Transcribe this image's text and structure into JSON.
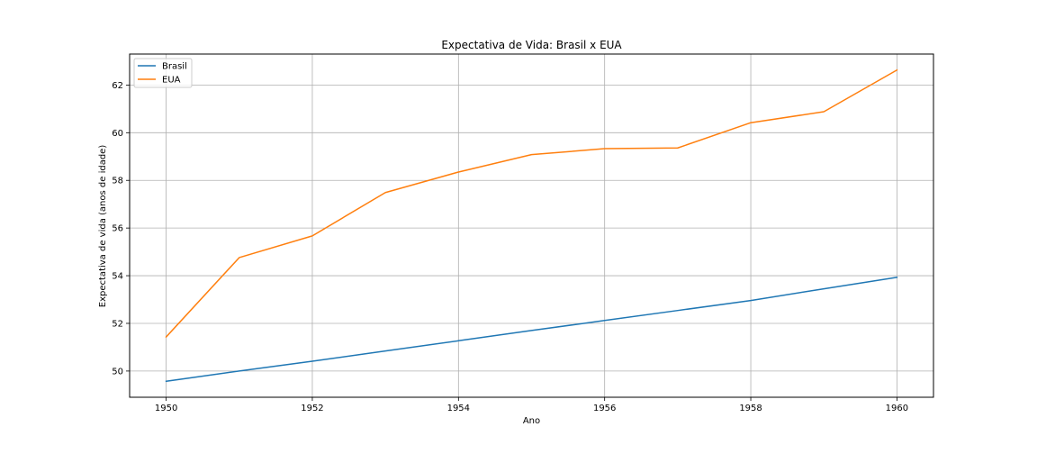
{
  "chart_data": {
    "type": "line",
    "title": "Expectativa de Vida: Brasil x EUA",
    "xlabel": "Ano",
    "ylabel": "Expectativa de vida (anos de idade)",
    "xlim": [
      1949.5,
      1960.5
    ],
    "ylim": [
      48.9,
      63.3
    ],
    "xticks": [
      1950,
      1952,
      1954,
      1956,
      1958,
      1960
    ],
    "yticks": [
      50,
      52,
      54,
      56,
      58,
      60,
      62
    ],
    "grid": true,
    "legend_position": "upper-left",
    "x": [
      1950,
      1951,
      1952,
      1953,
      1954,
      1955,
      1956,
      1957,
      1958,
      1959,
      1960
    ],
    "series": [
      {
        "name": "Brasil",
        "color": "#1f77b4",
        "values": [
          49.57,
          50.0,
          50.41,
          50.84,
          51.27,
          51.7,
          52.12,
          52.54,
          52.96,
          53.45,
          53.93
        ]
      },
      {
        "name": "EUA",
        "color": "#ff7f0e",
        "values": [
          51.43,
          54.76,
          55.67,
          57.49,
          58.35,
          59.08,
          59.33,
          59.36,
          60.42,
          60.88,
          62.63
        ]
      }
    ]
  }
}
